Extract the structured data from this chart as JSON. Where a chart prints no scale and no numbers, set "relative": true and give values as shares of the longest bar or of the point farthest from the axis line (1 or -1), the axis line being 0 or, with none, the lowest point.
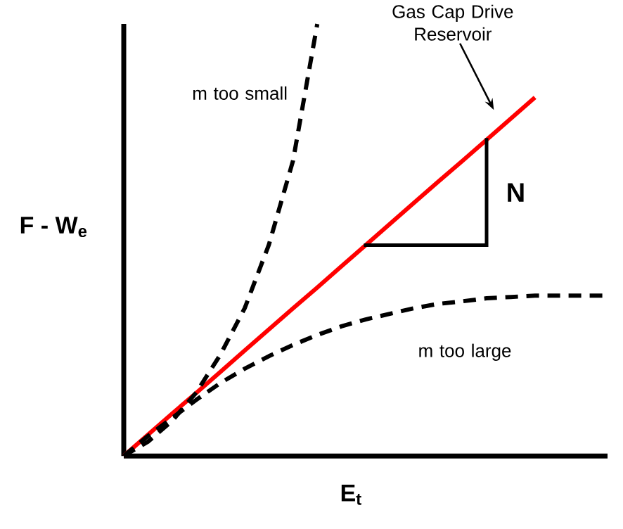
{
  "chart_data": {
    "type": "line",
    "relative": true,
    "xlabel": "E$_{t}$",
    "ylabel": "F - W$_{e}$",
    "categories": [
      null,
      null,
      null,
      null,
      null,
      null,
      null,
      null,
      null,
      null,
      null,
      null,
      null,
      null,
      null,
      null,
      null,
      null,
      null,
      null,
      null
    ],
    "series": [
      {
        "name": "Gas Cap Drive Reservoir",
        "color": "#ff0000",
        "line_style": "solid",
        "values": [
          0,
          0.049,
          0.098,
          0.146,
          0.195,
          0.244,
          0.293,
          0.342,
          0.39,
          0.439,
          0.488,
          0.537,
          0.586,
          0.635,
          0.683,
          0.732,
          0.781,
          0.83,
          null,
          null,
          null
        ]
      },
      {
        "name": "m too small",
        "color": "#000000",
        "line_style": "dashed",
        "values": [
          0,
          0.033,
          0.081,
          0.147,
          0.235,
          0.342,
          0.489,
          0.684,
          1,
          null,
          null,
          null,
          null,
          null,
          null,
          null,
          null,
          null,
          null,
          null,
          null
        ]
      },
      {
        "name": "m too large",
        "color": "#000000",
        "line_style": "dashed",
        "values": [
          0,
          0.046,
          0.088,
          0.13,
          0.169,
          0.202,
          0.231,
          0.257,
          0.28,
          0.3,
          0.316,
          0.329,
          0.342,
          0.352,
          0.358,
          0.365,
          0.368,
          0.371,
          0.371,
          0.371,
          0.371
        ]
      }
    ],
    "annotations": [
      "N"
    ]
  }
}
